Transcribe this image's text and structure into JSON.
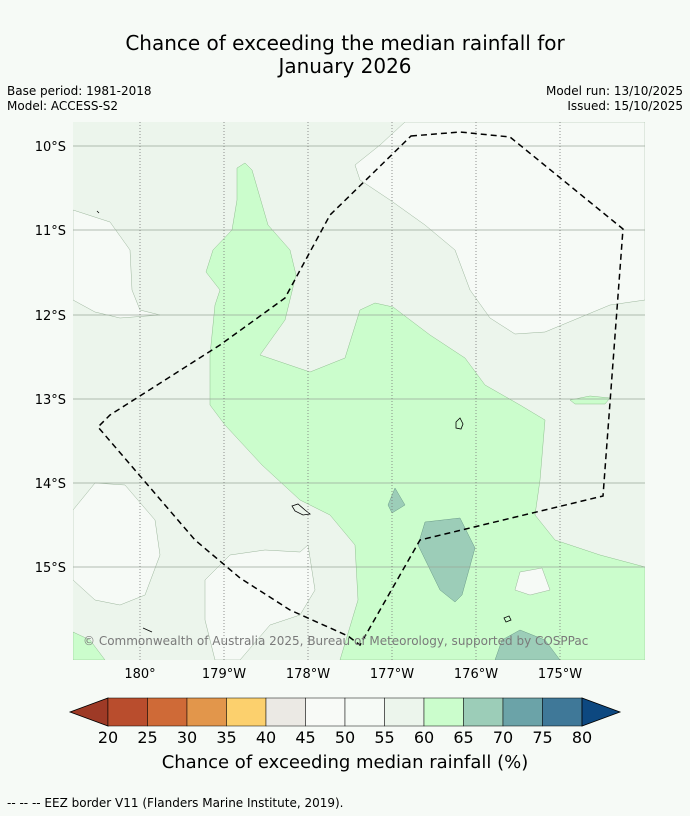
{
  "title_line1": "Chance of exceeding the median rainfall for",
  "title_line2": "January 2026",
  "meta_left": [
    "Base period: 1981-2018",
    "Model: ACCESS-S2"
  ],
  "meta_right": [
    "Model run: 13/10/2025",
    "Issued: 15/10/2025"
  ],
  "lat_labels": [
    "10°S",
    "11°S",
    "12°S",
    "13°S",
    "14°S",
    "15°S"
  ],
  "lon_labels": [
    "180°",
    "179°W",
    "178°W",
    "177°W",
    "176°W",
    "175°W"
  ],
  "copyright": "© Commonwealth of Australia 2025, Bureau of Meteorology, supported by COSPPac",
  "colorbar": {
    "ticks": [
      "20",
      "25",
      "30",
      "35",
      "40",
      "45",
      "50",
      "55",
      "60",
      "65",
      "70",
      "75",
      "80"
    ],
    "colors": [
      "#9e3a26",
      "#b94d2d",
      "#cf6a37",
      "#e2964b",
      "#fcd06d",
      "#ebe9e4",
      "#f8faf7",
      "#f6faf6",
      "#ecf5ec",
      "#cbfdcc",
      "#9ccdb8",
      "#6ba3a8",
      "#3f7898",
      "#0d4880"
    ],
    "label": "Chance of exceeding median rainfall (%)"
  },
  "footer": "--  --  -- EEZ border V11 (Flanders Marine Institute, 2019)."
}
